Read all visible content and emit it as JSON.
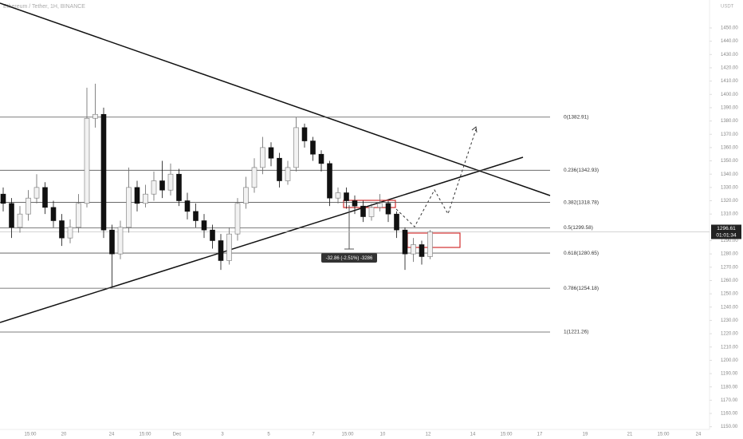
{
  "chart_data": {
    "type": "candlestick",
    "title": "Ethereum / Tether, 1H, BINANCE",
    "y_axis_label": "USDT",
    "x_labels": [
      "15:00",
      "20",
      "24",
      "15:00",
      "Dec",
      "3",
      "5",
      "7",
      "15:00",
      "10",
      "12",
      "14",
      "15:00",
      "17",
      "19",
      "21",
      "15:00",
      "24"
    ],
    "open": [
      1325,
      1318,
      1300,
      1310,
      1322,
      1330,
      1315,
      1305,
      1292,
      1300,
      1318,
      1382,
      1385,
      1298,
      1280,
      1300,
      1330,
      1318,
      1325,
      1335,
      1328,
      1340,
      1320,
      1312,
      1305,
      1298,
      1290,
      1275,
      1295,
      1318,
      1330,
      1345,
      1360,
      1352,
      1335,
      1345,
      1375,
      1365,
      1355,
      1348,
      1322,
      1326,
      1320,
      1316,
      1308,
      1315,
      1318,
      1310,
      1298,
      1280,
      1287,
      1278
    ],
    "high": [
      1330,
      1322,
      1316,
      1328,
      1340,
      1334,
      1320,
      1310,
      1306,
      1325,
      1405,
      1408,
      1390,
      1302,
      1305,
      1345,
      1335,
      1332,
      1342,
      1350,
      1348,
      1344,
      1326,
      1318,
      1310,
      1302,
      1295,
      1300,
      1322,
      1338,
      1352,
      1368,
      1364,
      1356,
      1350,
      1383,
      1378,
      1368,
      1358,
      1350,
      1330,
      1330,
      1324,
      1320,
      1318,
      1325,
      1320,
      1312,
      1300,
      1292,
      1290,
      1298
    ],
    "low": [
      1312,
      1292,
      1296,
      1305,
      1318,
      1310,
      1300,
      1286,
      1288,
      1296,
      1315,
      1375,
      1292,
      1255,
      1276,
      1296,
      1312,
      1315,
      1320,
      1322,
      1324,
      1316,
      1306,
      1300,
      1292,
      1284,
      1268,
      1272,
      1290,
      1314,
      1326,
      1340,
      1346,
      1330,
      1332,
      1342,
      1360,
      1350,
      1342,
      1316,
      1318,
      1314,
      1310,
      1304,
      1305,
      1312,
      1304,
      1292,
      1268,
      1274,
      1272,
      1276
    ],
    "close": [
      1318,
      1300,
      1310,
      1322,
      1330,
      1315,
      1305,
      1292,
      1300,
      1318,
      1382,
      1385,
      1298,
      1280,
      1300,
      1330,
      1318,
      1325,
      1335,
      1328,
      1340,
      1320,
      1312,
      1305,
      1298,
      1290,
      1275,
      1295,
      1318,
      1330,
      1345,
      1360,
      1352,
      1335,
      1345,
      1375,
      1365,
      1355,
      1348,
      1322,
      1326,
      1320,
      1316,
      1308,
      1315,
      1318,
      1310,
      1298,
      1280,
      1287,
      1278,
      1296.61
    ],
    "up_color": "#f2f2f2",
    "down_color": "#111111",
    "ylim": [
      1148,
      1471
    ],
    "yticks": [
      {
        "value": 1150,
        "label": "1150.00"
      },
      {
        "value": 1160,
        "label": "1160.00"
      },
      {
        "value": 1170,
        "label": "1170.00"
      },
      {
        "value": 1180,
        "label": "1180.00"
      },
      {
        "value": 1190,
        "label": "1190.00"
      },
      {
        "value": 1200,
        "label": "1200.00"
      },
      {
        "value": 1210,
        "label": "1210.00"
      },
      {
        "value": 1220,
        "label": "1220.00"
      },
      {
        "value": 1230,
        "label": "1230.00"
      },
      {
        "value": 1240,
        "label": "1240.00"
      },
      {
        "value": 1250,
        "label": "1250.00"
      },
      {
        "value": 1260,
        "label": "1260.00"
      },
      {
        "value": 1270,
        "label": "1270.00"
      },
      {
        "value": 1280,
        "label": "1280.00"
      },
      {
        "value": 1290,
        "label": "1290.00"
      },
      {
        "value": 1310,
        "label": "1310.00"
      },
      {
        "value": 1320,
        "label": "1320.00"
      },
      {
        "value": 1330,
        "label": "1330.00"
      },
      {
        "value": 1340,
        "label": "1340.00"
      },
      {
        "value": 1350,
        "label": "1350.00"
      },
      {
        "value": 1360,
        "label": "1360.00"
      },
      {
        "value": 1370,
        "label": "1370.00"
      },
      {
        "value": 1380,
        "label": "1380.00"
      },
      {
        "value": 1390,
        "label": "1390.00"
      },
      {
        "value": 1400,
        "label": "1400.00"
      },
      {
        "value": 1410,
        "label": "1410.00"
      },
      {
        "value": 1420,
        "label": "1420.00"
      },
      {
        "value": 1430,
        "label": "1430.00"
      },
      {
        "value": 1440,
        "label": "1440.00"
      },
      {
        "value": 1450,
        "label": "1450.00"
      }
    ],
    "fib_levels": [
      {
        "value": 1382.91,
        "label": "0(1382.91)"
      },
      {
        "value": 1342.93,
        "label": "0.236(1342.93)"
      },
      {
        "value": 1318.78,
        "label": "0.382(1318.78)"
      },
      {
        "value": 1299.58,
        "label": "0.5(1299.58)"
      },
      {
        "value": 1280.65,
        "label": "0.618(1280.65)"
      },
      {
        "value": 1254.18,
        "label": "0.786(1254.18)"
      },
      {
        "value": 1221.26,
        "label": "1(1221.26)"
      }
    ],
    "current_price": {
      "value": 1296.61,
      "label": "1296.61"
    },
    "countdown": "01:01:34",
    "measurement": "-32.86 (-2.51%) -3286"
  }
}
